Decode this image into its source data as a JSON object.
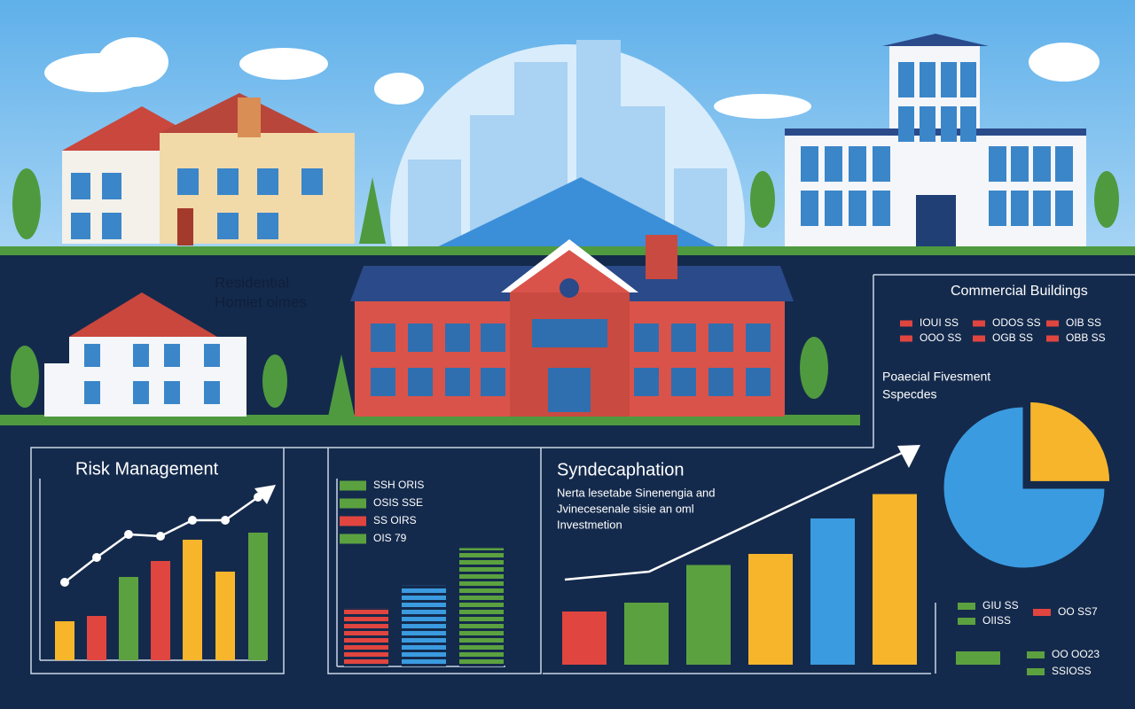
{
  "labels": {
    "residential": [
      "Residential",
      "Homiet oimes"
    ],
    "commercial": "Commercial Buildings",
    "commercial_legend": [
      {
        "label": "IOUI SS",
        "color": "#e0453f"
      },
      {
        "label": "OOO SS",
        "color": "#e0453f"
      },
      {
        "label": "ODOS SS",
        "color": "#e0453f"
      },
      {
        "label": "OGB SS",
        "color": "#e0453f"
      },
      {
        "label": "OIB SS",
        "color": "#e0453f"
      },
      {
        "label": "OBB SS",
        "color": "#e0453f"
      }
    ],
    "portfolio": [
      "Poaecial Fivesment",
      "Sspecdes"
    ],
    "bottom_legend": [
      {
        "label": "GIU SS",
        "color": "#5ca13f"
      },
      {
        "label": "OIISS",
        "color": "#5ca13f"
      },
      {
        "label": "OO SS7",
        "color": "#e0453f"
      },
      {
        "label": "OO OO23",
        "color": "#5ca13f"
      },
      {
        "label": "SSIOSS",
        "color": "#5ca13f"
      }
    ]
  },
  "chart_data": [
    {
      "type": "bar",
      "title": "Risk Management",
      "categories": [
        null,
        null,
        null,
        null,
        null,
        null,
        null
      ],
      "ylim": [
        0,
        100
      ],
      "series": [
        {
          "values": [
            22,
            25,
            47,
            56,
            68,
            50,
            72
          ],
          "colors": [
            "#f7b52c",
            "#e0453f",
            "#5ca13f",
            "#e0453f",
            "#f7b52c",
            "#f7b52c",
            "#5ca13f"
          ]
        },
        {
          "type": "line",
          "color": "#ffffff",
          "values": [
            44,
            58,
            71,
            70,
            79,
            79,
            92
          ]
        }
      ]
    },
    {
      "type": "bar",
      "striped": true,
      "categories": [
        null,
        null,
        null
      ],
      "ylim": [
        0,
        100
      ],
      "legend": [
        {
          "label": "SSH ORIS",
          "color": "#5ca13f"
        },
        {
          "label": "OSIS SSE",
          "color": "#5ca13f"
        },
        {
          "label": "SS OIRS",
          "color": "#e0453f"
        },
        {
          "label": "OIS 79",
          "color": "#5ca13f"
        }
      ],
      "series": [
        {
          "values": [
            31,
            43,
            63
          ],
          "colors": [
            "#e0453f",
            "#3b9be0",
            "#5ca13f"
          ]
        }
      ]
    },
    {
      "type": "bar",
      "title": "Syndecaphation",
      "text": [
        "Nerta lesetabe Sinenengia and",
        "Jvinecesenale sisie an oml",
        "Investmetion"
      ],
      "categories": [
        null,
        null,
        null,
        null,
        null,
        null
      ],
      "ylim": [
        0,
        100
      ],
      "series": [
        {
          "values": [
            24,
            28,
            45,
            50,
            66,
            77
          ],
          "colors": [
            "#e0453f",
            "#5ca13f",
            "#5ca13f",
            "#f7b52c",
            "#3b9be0",
            "#f7b52c"
          ]
        }
      ]
    },
    {
      "type": "pie",
      "values": [
        75,
        25
      ],
      "colors": [
        "#3b9be0",
        "#f7b52c"
      ]
    }
  ]
}
